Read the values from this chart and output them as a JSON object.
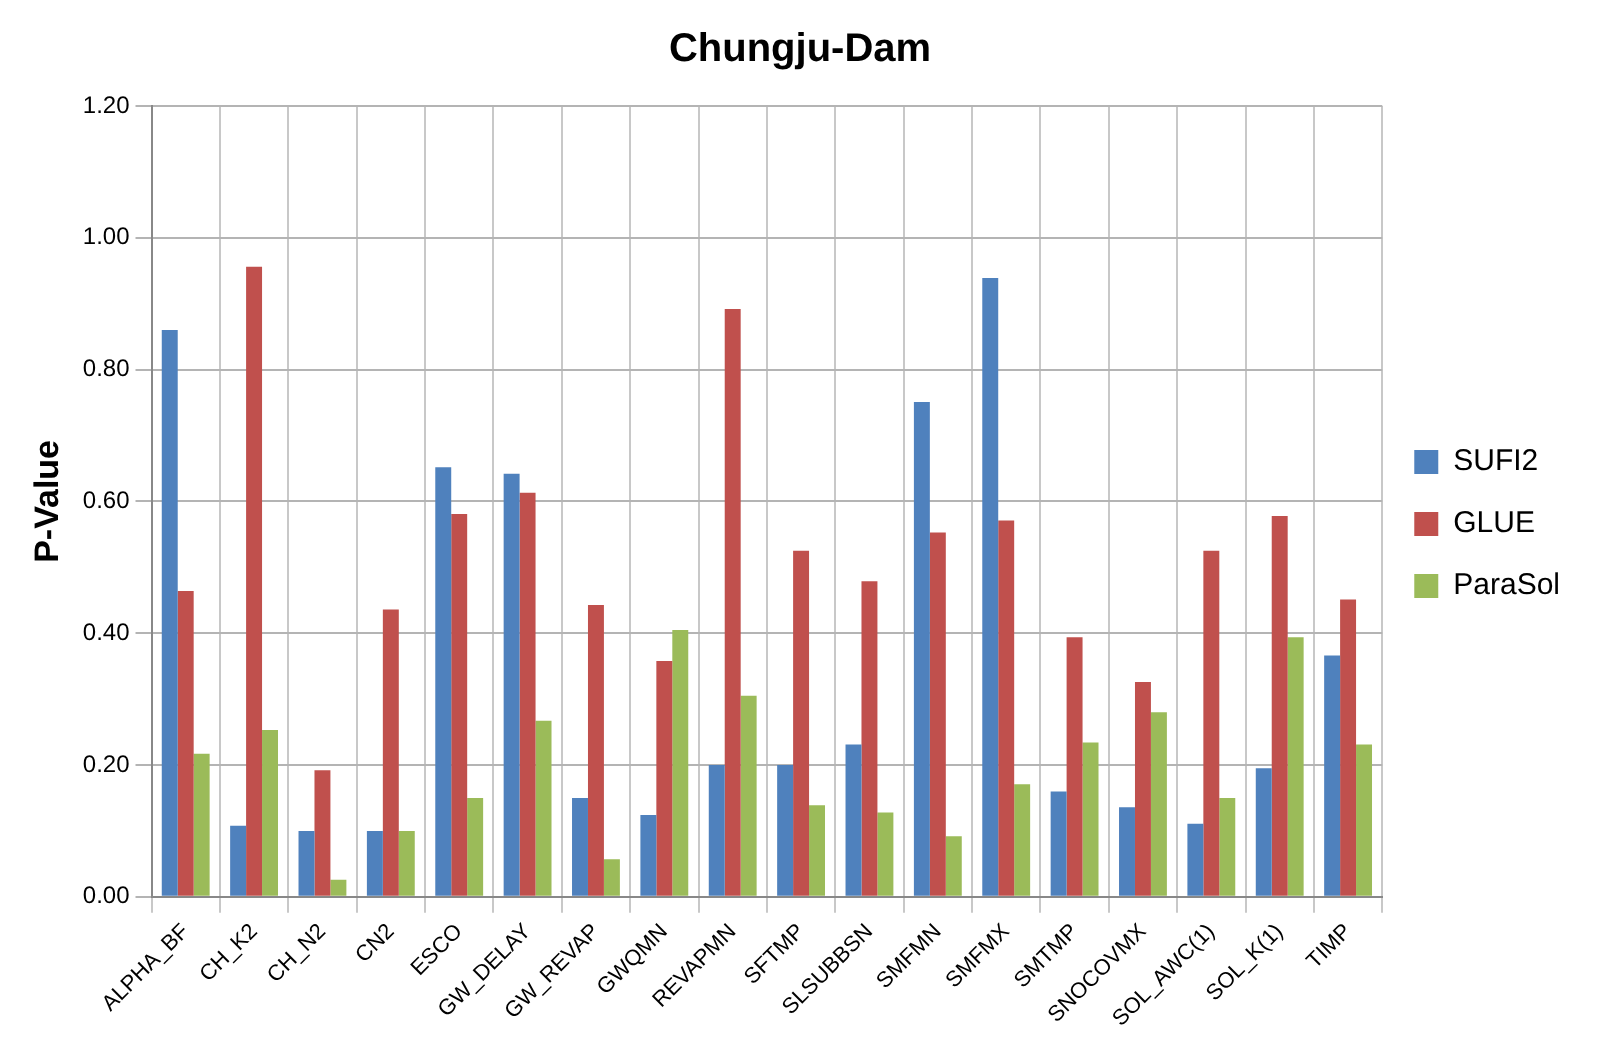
{
  "chart_data": {
    "type": "bar",
    "title": "Chungju-Dam",
    "ylabel": "P-Value",
    "categories": [
      "ALPHA_BF",
      "CH_K2",
      "CH_N2",
      "CN2",
      "ESCO",
      "GW_DELAY",
      "GW_REVAP",
      "GWQMN",
      "REVAPMN",
      "SFTMP",
      "SLSUBBSN",
      "SMFMN",
      "SMFMX",
      "SMTMP",
      "SNOCOVMX",
      "SOL_AWC(1)",
      "SOL_K(1)",
      "TIMP"
    ],
    "series": [
      {
        "name": "SUFI2",
        "color": "#4f81bd",
        "values": [
          0.86,
          0.108,
          0.1,
          0.1,
          0.652,
          0.642,
          0.15,
          0.124,
          0.2,
          0.2,
          0.231,
          0.751,
          0.939,
          0.16,
          0.136,
          0.111,
          0.195,
          0.366
        ]
      },
      {
        "name": "GLUE",
        "color": "#c0504d",
        "values": [
          0.464,
          0.956,
          0.192,
          0.436,
          0.581,
          0.613,
          0.443,
          0.358,
          0.892,
          0.525,
          0.479,
          0.553,
          0.571,
          0.394,
          0.326,
          0.525,
          0.578,
          0.451
        ]
      },
      {
        "name": "ParaSol",
        "color": "#9bbb59",
        "values": [
          0.217,
          0.253,
          0.026,
          0.1,
          0.15,
          0.267,
          0.057,
          0.405,
          0.305,
          0.139,
          0.128,
          0.092,
          0.171,
          0.234,
          0.28,
          0.15,
          0.394,
          0.231
        ]
      }
    ],
    "ylim": [
      0,
      1.2
    ],
    "yticks": [
      {
        "value": 0,
        "label": "0.00"
      },
      {
        "value": 0.2,
        "label": "0.20"
      },
      {
        "value": 0.4,
        "label": "0.40"
      },
      {
        "value": 0.6,
        "label": "0.60"
      },
      {
        "value": 0.8,
        "label": "0.80"
      },
      {
        "value": 1,
        "label": "1.00"
      },
      {
        "value": 1.2,
        "label": "1.20"
      }
    ],
    "grid": true,
    "legend": "right"
  }
}
